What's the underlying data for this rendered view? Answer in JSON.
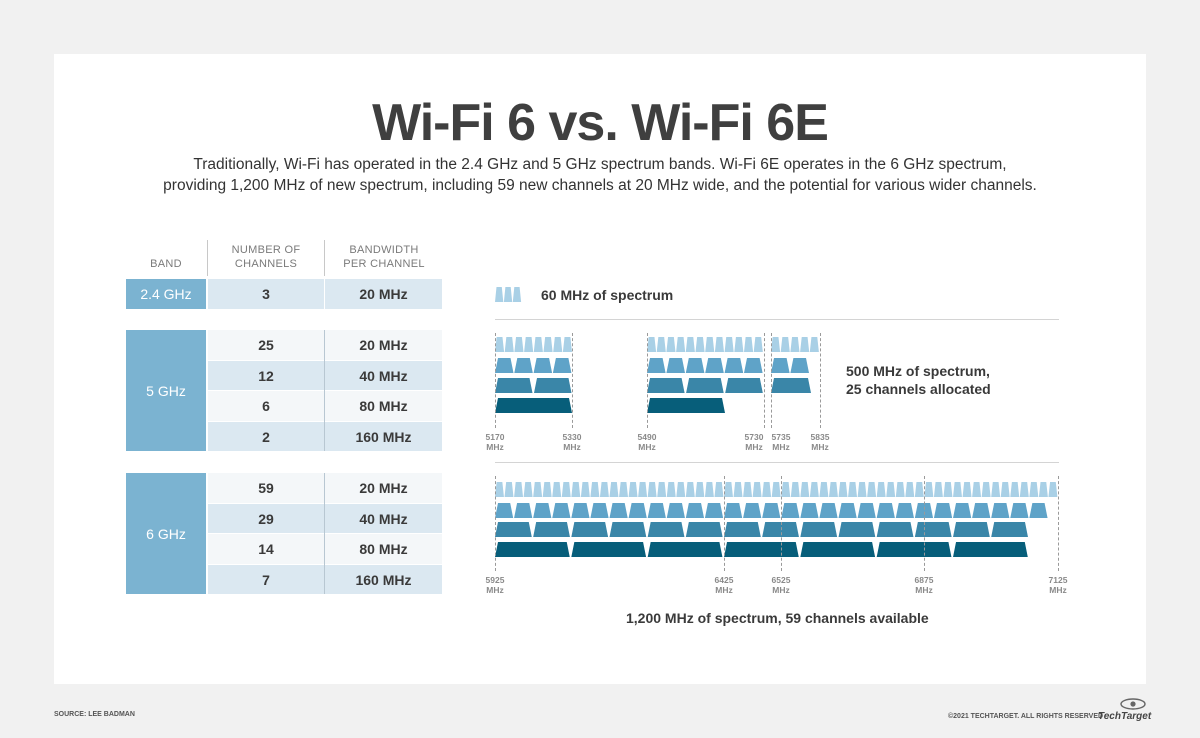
{
  "title": "Wi-Fi 6 vs. Wi-Fi 6E",
  "subtitle_line1": "Traditionally, Wi-Fi has operated in the 2.4 GHz and 5 GHz spectrum bands. Wi-Fi 6E operates in the 6 GHz spectrum,",
  "subtitle_line2": "providing 1,200 MHz of new spectrum, including 59 new channels at 20 MHz wide, and the potential for various wider channels.",
  "table": {
    "headers": {
      "band": "BAND",
      "channels_l1": "NUMBER OF",
      "channels_l2": "CHANNELS",
      "bandwidth_l1": "BANDWIDTH",
      "bandwidth_l2": "PER CHANNEL"
    },
    "bands": [
      {
        "band": "2.4 GHz",
        "rows": [
          {
            "channels": "3",
            "bandwidth": "20 MHz"
          }
        ]
      },
      {
        "band": "5 GHz",
        "rows": [
          {
            "channels": "25",
            "bandwidth": "20 MHz"
          },
          {
            "channels": "12",
            "bandwidth": "40 MHz"
          },
          {
            "channels": "6",
            "bandwidth": "80 MHz"
          },
          {
            "channels": "2",
            "bandwidth": "160 MHz"
          }
        ]
      },
      {
        "band": "6 GHz",
        "rows": [
          {
            "channels": "59",
            "bandwidth": "20 MHz"
          },
          {
            "channels": "29",
            "bandwidth": "40 MHz"
          },
          {
            "channels": "14",
            "bandwidth": "80 MHz"
          },
          {
            "channels": "7",
            "bandwidth": "160 MHz"
          }
        ]
      }
    ]
  },
  "notes": {
    "band24": "60 MHz of spectrum",
    "band5_l1": "500 MHz of spectrum,",
    "band5_l2": "25 channels allocated",
    "band6": "1,200 MHz of spectrum, 59 channels available"
  },
  "freq_labels": {
    "band5": [
      {
        "mhz": "5170",
        "unit": "MHz"
      },
      {
        "mhz": "5330",
        "unit": "MHz"
      },
      {
        "mhz": "5490",
        "unit": "MHz"
      },
      {
        "mhz": "5730",
        "unit": "MHz"
      },
      {
        "mhz": "5735",
        "unit": "MHz"
      },
      {
        "mhz": "5835",
        "unit": "MHz"
      }
    ],
    "band6": [
      {
        "mhz": "5925",
        "unit": "MHz"
      },
      {
        "mhz": "6425",
        "unit": "MHz"
      },
      {
        "mhz": "6525",
        "unit": "MHz"
      },
      {
        "mhz": "6875",
        "unit": "MHz"
      },
      {
        "mhz": "7125",
        "unit": "MHz"
      }
    ]
  },
  "colors": {
    "ch20": "#a9d0e6",
    "ch40": "#5fa3c8",
    "ch80": "#3a86a8",
    "ch160": "#075e7a",
    "band_cell": "#7bb3d1"
  },
  "footer": {
    "source": "SOURCE: LEE BADMAN",
    "copyright": "©2021 TECHTARGET. ALL RIGHTS RESERVED",
    "logo": "TechTarget"
  }
}
